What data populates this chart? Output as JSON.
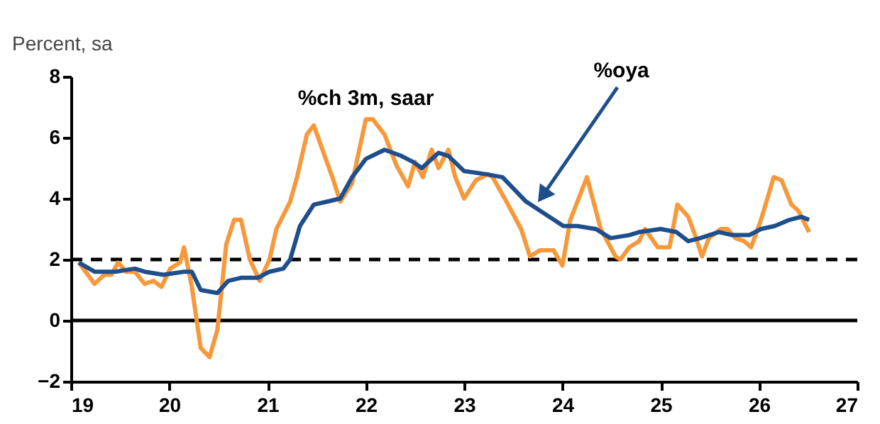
{
  "chart_data": {
    "type": "line",
    "ylabel": "Percent, sa",
    "xlim": [
      19,
      27
    ],
    "xticks": [
      19,
      20,
      21,
      22,
      23,
      24,
      25,
      26,
      27
    ],
    "ylim": [
      -2,
      8
    ],
    "yticks": [
      -2,
      0,
      2,
      4,
      6,
      8
    ],
    "grid": false,
    "marker": "none",
    "line_style": "solid",
    "series": [
      {
        "name": "%ch 3m, saar",
        "color": "#f7983a",
        "x": [
          19.08,
          19.24,
          19.34,
          19.41,
          19.48,
          19.56,
          19.65,
          19.75,
          19.84,
          19.92,
          20.01,
          20.11,
          20.15,
          20.23,
          20.32,
          20.41,
          20.49,
          20.58,
          20.66,
          20.73,
          20.82,
          20.92,
          21.02,
          21.09,
          21.23,
          21.3,
          21.4,
          21.47,
          21.57,
          21.66,
          21.74,
          21.86,
          22.0,
          22.07,
          22.19,
          22.31,
          22.43,
          22.5,
          22.58,
          22.67,
          22.74,
          22.84,
          22.91,
          23.0,
          23.12,
          23.24,
          23.29,
          23.43,
          23.58,
          23.67,
          23.77,
          23.91,
          24.0,
          24.08,
          24.25,
          24.39,
          24.54,
          24.59,
          24.68,
          24.78,
          24.84,
          24.97,
          25.09,
          25.17,
          25.28,
          25.35,
          25.42,
          25.49,
          25.61,
          25.68,
          25.76,
          25.85,
          25.92,
          26.02,
          26.15,
          26.23,
          26.33,
          26.4,
          26.51
        ],
        "values": [
          1.9,
          1.2,
          1.5,
          1.5,
          1.9,
          1.6,
          1.6,
          1.2,
          1.3,
          1.1,
          1.7,
          1.9,
          2.4,
          1.1,
          -0.9,
          -1.2,
          -0.3,
          2.5,
          3.3,
          3.3,
          2.0,
          1.3,
          2.0,
          3.0,
          3.9,
          4.7,
          6.1,
          6.4,
          5.5,
          4.7,
          3.9,
          4.5,
          6.6,
          6.6,
          6.1,
          5.1,
          4.4,
          5.2,
          4.7,
          5.6,
          5.0,
          5.6,
          4.7,
          4.0,
          4.6,
          4.8,
          4.7,
          3.9,
          3.0,
          2.1,
          2.3,
          2.3,
          1.8,
          3.3,
          4.7,
          3.0,
          2.1,
          2.0,
          2.4,
          2.6,
          3.0,
          2.4,
          2.4,
          3.8,
          3.4,
          2.8,
          2.1,
          2.7,
          3.0,
          3.0,
          2.7,
          2.6,
          2.4,
          3.3,
          4.7,
          4.6,
          3.8,
          3.6,
          2.9
        ]
      },
      {
        "name": "%oya",
        "color": "#1f4e8c",
        "x": [
          19.08,
          19.24,
          19.45,
          19.65,
          19.75,
          19.94,
          20.15,
          20.23,
          20.32,
          20.49,
          20.6,
          20.73,
          20.9,
          21.02,
          21.16,
          21.23,
          21.33,
          21.47,
          21.61,
          21.74,
          21.86,
          22.0,
          22.19,
          22.36,
          22.48,
          22.57,
          22.74,
          22.84,
          23.0,
          23.22,
          23.39,
          23.63,
          23.82,
          24.01,
          24.15,
          24.34,
          24.49,
          24.68,
          24.78,
          25.0,
          25.16,
          25.28,
          25.4,
          25.59,
          25.73,
          25.9,
          26.02,
          26.16,
          26.31,
          26.43,
          26.51
        ],
        "values": [
          1.9,
          1.6,
          1.6,
          1.7,
          1.6,
          1.5,
          1.6,
          1.6,
          1.0,
          0.9,
          1.3,
          1.4,
          1.4,
          1.6,
          1.7,
          2.0,
          3.1,
          3.8,
          3.9,
          4.0,
          4.7,
          5.3,
          5.6,
          5.4,
          5.2,
          5.0,
          5.5,
          5.4,
          4.9,
          4.8,
          4.7,
          3.9,
          3.5,
          3.1,
          3.1,
          3.0,
          2.7,
          2.8,
          2.9,
          3.0,
          2.9,
          2.6,
          2.7,
          2.9,
          2.8,
          2.8,
          3.0,
          3.1,
          3.3,
          3.4,
          3.3
        ]
      }
    ],
    "ref_lines": [
      {
        "axis": "y",
        "value": 2,
        "line_style": "dashed",
        "color": "#000000"
      },
      {
        "axis": "y",
        "value": 0,
        "line_style": "solid",
        "color": "#000000"
      }
    ]
  }
}
